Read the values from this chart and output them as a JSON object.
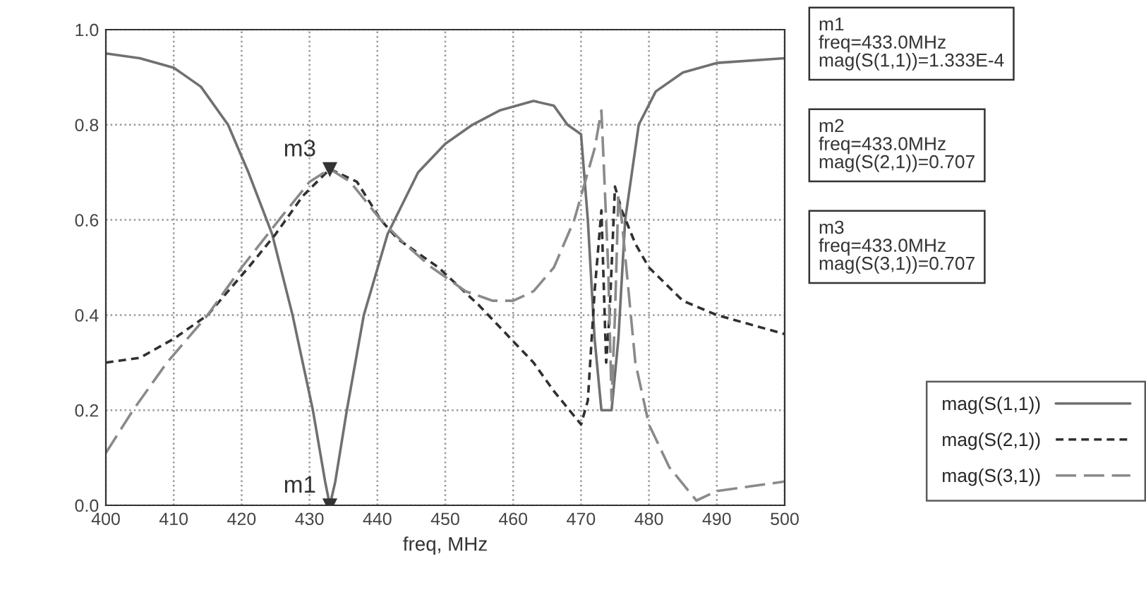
{
  "chart_data": {
    "type": "line",
    "xlabel": "freq, MHz",
    "xlim": [
      400,
      500
    ],
    "xticks": [
      400,
      410,
      420,
      430,
      440,
      450,
      460,
      470,
      480,
      490,
      500
    ],
    "ylim": [
      0,
      1
    ],
    "yticks": [
      {
        "value": 0,
        "label": "0.0"
      },
      {
        "value": 0.2,
        "label": "0.2"
      },
      {
        "value": 0.4,
        "label": "0.4"
      },
      {
        "value": 0.6,
        "label": "0.6"
      },
      {
        "value": 0.8,
        "label": "0.8"
      },
      {
        "value": 1,
        "label": "1.0"
      }
    ],
    "grid": true,
    "legend": "bottom right",
    "marker": "none",
    "series": [
      {
        "name": "mag(S(1,1))",
        "color": "#707070",
        "line_style": "solid",
        "x": [
          400,
          405,
          410,
          414,
          418,
          421,
          424.5,
          427.5,
          430.5,
          432.3,
          433,
          433.8,
          435.5,
          438,
          441.5,
          446,
          450,
          454,
          458,
          463,
          466,
          468,
          470,
          471,
          472,
          473,
          474.5,
          475.5,
          476.5,
          478.5,
          481,
          485,
          490,
          500
        ],
        "values": [
          0.95,
          0.94,
          0.92,
          0.88,
          0.8,
          0.7,
          0.57,
          0.4,
          0.2,
          0.05,
          0.0,
          0.05,
          0.2,
          0.4,
          0.57,
          0.7,
          0.76,
          0.8,
          0.83,
          0.85,
          0.84,
          0.8,
          0.78,
          0.6,
          0.35,
          0.2,
          0.2,
          0.35,
          0.6,
          0.8,
          0.87,
          0.91,
          0.93,
          0.94
        ]
      },
      {
        "name": "mag(S(2,1))",
        "color": "#303030",
        "line_style": "dotted",
        "x": [
          400,
          405,
          410,
          415,
          421,
          425,
          429,
          433,
          437,
          440.5,
          443,
          449,
          455,
          459,
          463,
          466,
          470,
          471,
          472,
          473,
          473.7,
          474.2,
          475,
          476,
          478,
          480,
          485,
          490,
          495,
          500
        ],
        "values": [
          0.3,
          0.31,
          0.35,
          0.4,
          0.5,
          0.57,
          0.65,
          0.707,
          0.68,
          0.6,
          0.56,
          0.5,
          0.42,
          0.36,
          0.3,
          0.24,
          0.17,
          0.22,
          0.45,
          0.62,
          0.3,
          0.4,
          0.67,
          0.62,
          0.55,
          0.5,
          0.43,
          0.4,
          0.38,
          0.36
        ]
      },
      {
        "name": "mag(S(3,1))",
        "color": "#8a8a8a",
        "line_style": "dashed",
        "x": [
          400,
          404,
          409,
          415,
          420,
          425.5,
          430,
          433,
          436,
          440.5,
          444,
          448,
          453,
          457,
          460,
          463,
          466,
          469,
          471,
          472,
          473,
          474,
          474.5,
          475,
          475.5,
          476,
          477,
          478,
          480,
          483,
          487,
          490,
          495,
          500
        ],
        "values": [
          0.11,
          0.2,
          0.3,
          0.4,
          0.5,
          0.6,
          0.68,
          0.707,
          0.68,
          0.6,
          0.55,
          0.5,
          0.45,
          0.43,
          0.43,
          0.45,
          0.5,
          0.6,
          0.7,
          0.75,
          0.83,
          0.5,
          0.22,
          0.4,
          0.65,
          0.6,
          0.45,
          0.3,
          0.17,
          0.08,
          0.01,
          0.03,
          0.04,
          0.05
        ]
      }
    ],
    "annotations": [
      {
        "text": "m1",
        "x": 433,
        "y": 0
      },
      {
        "text": "m3",
        "x": 433,
        "y": 0.707
      },
      "m1\nfreq=433.0MHz\nmag(S(1,1))=1.333E-4",
      "m2\nfreq=433.0MHz\nmag(S(2,1))=0.707",
      "m3\nfreq=433.0MHz\nmag(S(3,1))=0.707"
    ]
  }
}
